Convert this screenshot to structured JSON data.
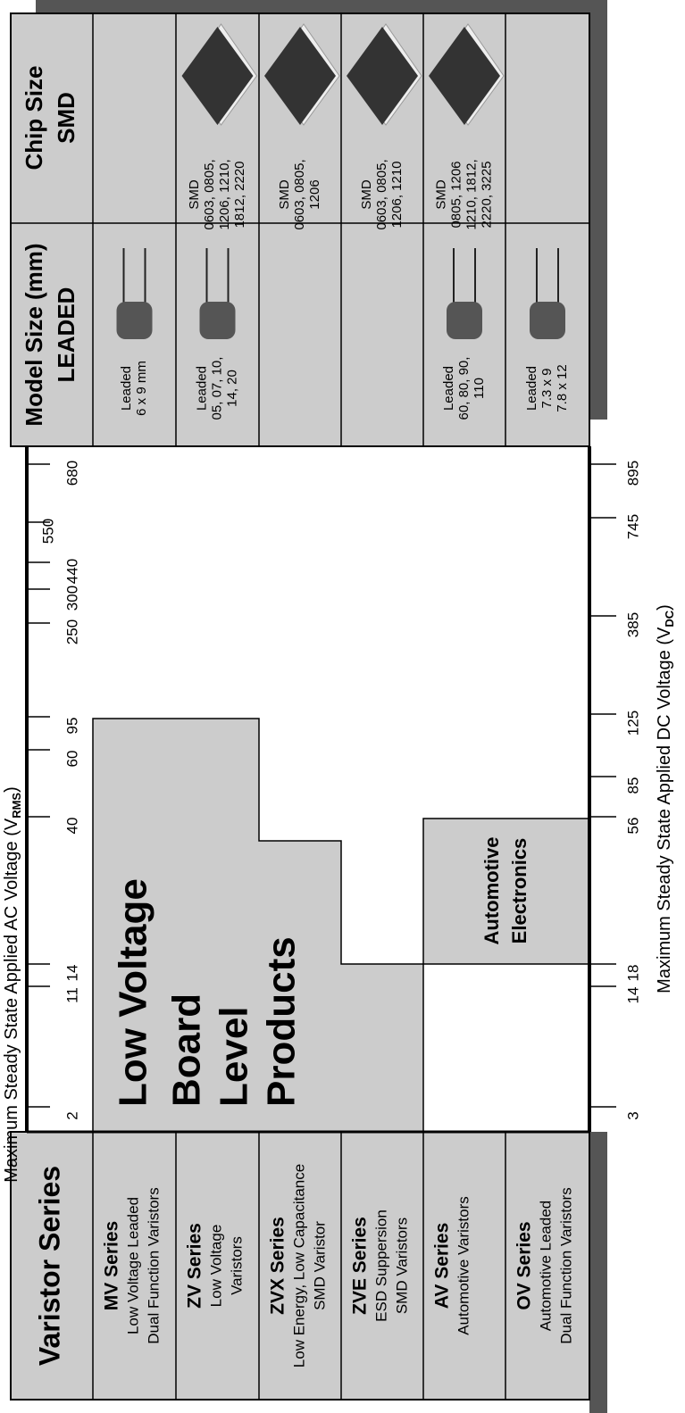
{
  "header": {
    "series_title": "Varistor Series",
    "model_title": "Model Size (mm)",
    "model_sub": "LEADED",
    "chip_title": "Chip Size",
    "chip_sub": "SMD"
  },
  "axes": {
    "ac_label": {
      "text": "Maximum Steady State Applied AC Voltage (V",
      "sub": "RMS",
      "end": ")"
    },
    "ac_ticks": [
      2,
      11,
      14,
      40,
      60,
      95,
      250,
      300,
      440,
      550,
      680
    ],
    "dc_label": {
      "text": "Maximum Steady State Applied DC Voltage (V",
      "sub": "DC",
      "end": ")"
    },
    "dc_ticks": [
      3,
      14,
      18,
      56,
      85,
      125,
      385,
      745,
      895
    ]
  },
  "regions": {
    "board": [
      "Low Voltage",
      "Board",
      "Level",
      "Products"
    ],
    "automotive": [
      "Automotive",
      "Electronics"
    ]
  },
  "series": [
    {
      "name": "MV Series",
      "desc": [
        "Low Voltage Leaded",
        "Dual Function Varistors"
      ],
      "leaded": [
        "Leaded",
        "6 x 9 mm"
      ]
    },
    {
      "name": "ZV Series",
      "desc": [
        "Low Voltage",
        "Varistors"
      ],
      "leaded": [
        "Leaded",
        "05, 07, 10,",
        "14, 20"
      ],
      "smd": [
        "SMD",
        "0603, 0805,",
        "1206, 1210,",
        "1812, 2220"
      ]
    },
    {
      "name": "ZVX Series",
      "desc": [
        "Low Energy, Low Capacitance",
        "SMD Varistor"
      ],
      "smd": [
        "SMD",
        "0603, 0805,",
        "1206"
      ]
    },
    {
      "name": "ZVE Series",
      "desc": [
        "ESD Suppersion",
        "SMD Varistors"
      ],
      "smd": [
        "SMD",
        "0603, 0805,",
        "1206, 1210"
      ]
    },
    {
      "name": "AV Series",
      "desc": [
        "Automotive Varistors"
      ],
      "leaded": [
        "Leaded",
        "60, 80, 90,",
        "110"
      ],
      "smd": [
        "SMD",
        "0805, 1206",
        "1210, 1812,",
        "2220, 3225"
      ]
    },
    {
      "name": "OV Series",
      "desc": [
        "Automotive Leaded",
        "Dual Function Varistors"
      ],
      "leaded": [
        "Leaded",
        "7.3 x 9",
        "7.8 x 12"
      ]
    }
  ]
}
